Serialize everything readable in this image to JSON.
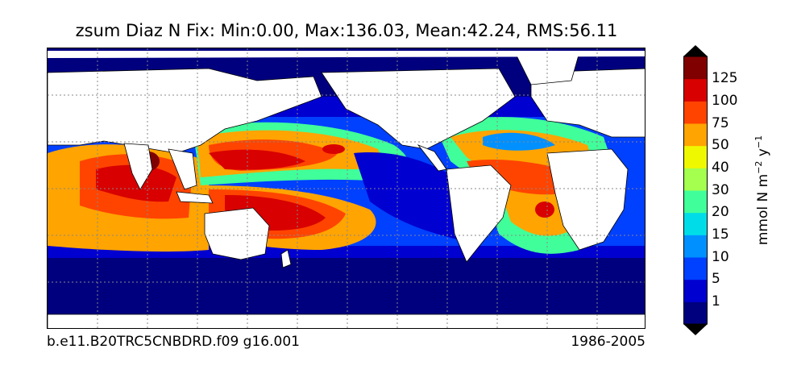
{
  "title": "zsum Diaz N Fix: Min:0.00, Max:136.03, Mean:42.24, RMS:56.11",
  "footer": {
    "case": "b.e11.B20TRC5CNBDRD.f09 g16.001",
    "years": "1986-2005"
  },
  "colorbar": {
    "unit_main": "mmol N m",
    "unit_exp1": "−2",
    "unit_mid": " y",
    "unit_exp2": "−1",
    "levels": [
      "1",
      "5",
      "10",
      "15",
      "20",
      "30",
      "40",
      "50",
      "75",
      "100",
      "125"
    ],
    "colors": [
      "#00007f",
      "#0000d0",
      "#0040ff",
      "#0090ff",
      "#00dde8",
      "#40ff9a",
      "#a4ff4f",
      "#f0f800",
      "#ffa400",
      "#ff4400",
      "#d80000",
      "#800000"
    ]
  },
  "map": {
    "ocean_background": "#00007f",
    "land": "#ffffff",
    "gridlines": "dotted gray"
  }
}
